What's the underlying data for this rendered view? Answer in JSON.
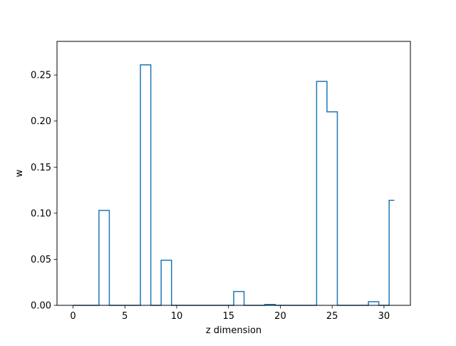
{
  "chart_data": {
    "type": "step",
    "title": "",
    "xlabel": "z dimension",
    "ylabel": "w",
    "xlim": [
      -1.55,
      32.55
    ],
    "ylim": [
      0,
      0.2865
    ],
    "xticks": [
      0,
      5,
      10,
      15,
      20,
      25,
      30
    ],
    "yticks": [
      0.0,
      0.05,
      0.1,
      0.15,
      0.2,
      0.25
    ],
    "ytick_labels": [
      "0.00",
      "0.05",
      "0.10",
      "0.15",
      "0.20",
      "0.25"
    ],
    "grid": false,
    "legend": false,
    "color": "#1f77b4",
    "x": [
      0,
      1,
      2,
      3,
      4,
      5,
      6,
      7,
      8,
      9,
      10,
      11,
      12,
      13,
      14,
      15,
      16,
      17,
      18,
      19,
      20,
      21,
      22,
      23,
      24,
      25,
      26,
      27,
      28,
      29,
      30,
      31
    ],
    "values": [
      0,
      0,
      0,
      0.103,
      0,
      0,
      0,
      0.261,
      0,
      0.049,
      0,
      0,
      0,
      0,
      0,
      0,
      0.015,
      0,
      0,
      0.001,
      0,
      0,
      0,
      0,
      0.243,
      0.21,
      0,
      0,
      0,
      0.004,
      0,
      0.114
    ]
  }
}
